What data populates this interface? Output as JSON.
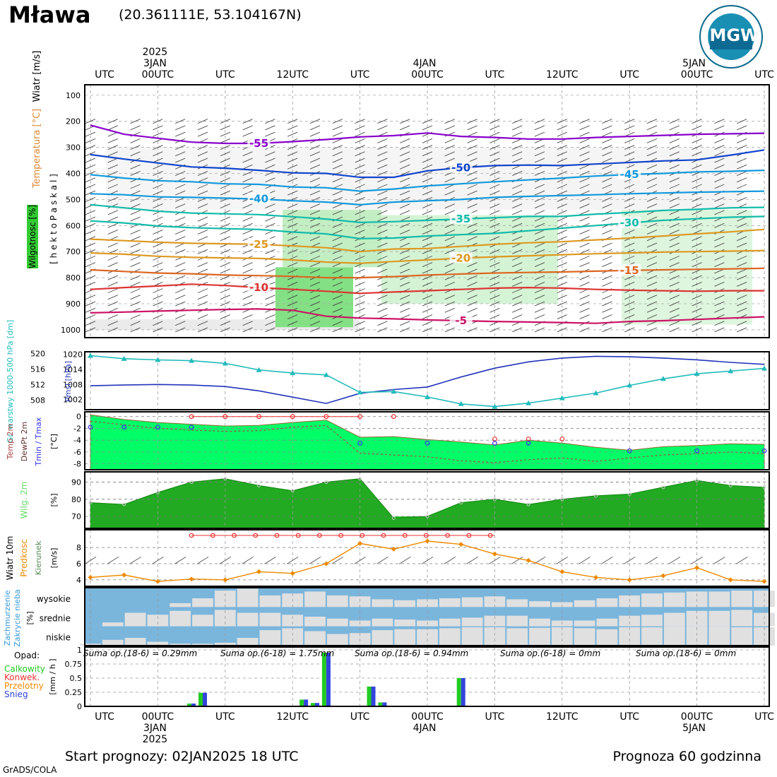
{
  "header": {
    "station": "Mława",
    "coords": "(20.361111E, 53.104167N)",
    "logo_text": "IMGW",
    "logo_ring": "INSTYTUT METEOROLOGII I GOSPODARKI WODNEJ · PAŃSTWOWY INSTYTUT BADAWCZY"
  },
  "time_axis": {
    "utc_label": "UTC",
    "hour_labels": [
      "UTC",
      "00UTC",
      "UTC",
      "12UTC",
      "UTC",
      "00UTC",
      "UTC",
      "12UTC",
      "UTC",
      "00UTC",
      "UTC"
    ],
    "top_dates": [
      {
        "year": "2025",
        "day": "3JAN"
      },
      {
        "year": "",
        "day": "4JAN"
      },
      {
        "year": "",
        "day": "5JAN"
      }
    ],
    "bottom_dates": [
      {
        "day": "3JAN",
        "year": "2025"
      },
      {
        "day": "4JAN",
        "year": ""
      },
      {
        "day": "5JAN",
        "year": ""
      }
    ]
  },
  "colors": {
    "green_fill": "#00ff66",
    "moist_green": "#33cc33",
    "cloud_blue": "#7ab5dc",
    "cloud_grey": "#e0e0e0",
    "pmsl_line": "#2233bb",
    "gpt_line": "#22bbbb",
    "temp_line": "#996633",
    "tmax": "#ee3333",
    "tmin": "#3333ee",
    "wind_speed": "#ee8800"
  },
  "chart_data": [
    {
      "type": "line",
      "panel": "upper_air",
      "labels": {
        "left_axis_wind": "Wiatr [m/s]",
        "left_axis_temp": "Temperatura [°C]",
        "left_axis_rh": "Wilgotnosc [%]",
        "left_axis_p": "[ h e k t o P a s k a l ]"
      },
      "pressure_ticks": [
        100,
        200,
        300,
        400,
        500,
        600,
        700,
        800,
        900,
        1000
      ],
      "ylim": [
        1030,
        60
      ],
      "x_hours": [
        0,
        3,
        6,
        9,
        12,
        15,
        18,
        21,
        24,
        27,
        30,
        33,
        36,
        39,
        42,
        45,
        48,
        51,
        54,
        57,
        60
      ],
      "isotherms": [
        {
          "value": -55,
          "color": "#8800cc",
          "p": [
            215,
            250,
            265,
            280,
            285,
            285,
            278,
            270,
            260,
            255,
            245,
            258,
            262,
            268,
            268,
            262,
            258,
            254,
            250,
            248,
            246
          ]
        },
        {
          "value": -50,
          "color": "#1144cc",
          "p": [
            328,
            345,
            360,
            375,
            380,
            388,
            398,
            400,
            415,
            415,
            390,
            378,
            370,
            368,
            370,
            364,
            358,
            352,
            348,
            330,
            310
          ]
        },
        {
          "value": -45,
          "color": "#1199dd",
          "p": [
            405,
            418,
            428,
            432,
            440,
            442,
            452,
            455,
            468,
            460,
            448,
            440,
            432,
            425,
            418,
            410,
            404,
            400,
            394,
            392,
            388
          ]
        },
        {
          "value": -40,
          "color": "#1199dd",
          "p": [
            478,
            482,
            490,
            492,
            495,
            498,
            505,
            510,
            520,
            510,
            505,
            500,
            492,
            488,
            485,
            482,
            478,
            475,
            472,
            470,
            468
          ]
        },
        {
          "value": -35,
          "color": "#11bbaa",
          "p": [
            520,
            532,
            545,
            552,
            555,
            558,
            566,
            575,
            588,
            585,
            580,
            575,
            570,
            565,
            565,
            556,
            550,
            542,
            538,
            532,
            530
          ]
        },
        {
          "value": -30,
          "color": "#11bbaa",
          "p": [
            582,
            590,
            602,
            608,
            612,
            615,
            625,
            632,
            650,
            648,
            640,
            635,
            630,
            620,
            610,
            600,
            590,
            580,
            574,
            568,
            565
          ]
        },
        {
          "value": -25,
          "color": "#dd9922",
          "p": [
            652,
            658,
            664,
            668,
            670,
            672,
            678,
            685,
            700,
            690,
            688,
            680,
            672,
            666,
            662,
            655,
            648,
            640,
            632,
            624,
            615
          ]
        },
        {
          "value": -20,
          "color": "#dd9922",
          "p": [
            705,
            710,
            718,
            722,
            724,
            726,
            732,
            740,
            745,
            738,
            732,
            725,
            720,
            716,
            712,
            708,
            705,
            702,
            700,
            698,
            696
          ]
        },
        {
          "value": -15,
          "color": "#dd6622",
          "p": [
            770,
            776,
            782,
            785,
            790,
            792,
            795,
            800,
            800,
            796,
            790,
            786,
            782,
            780,
            778,
            775,
            772,
            770,
            768,
            766,
            764
          ]
        },
        {
          "value": -10,
          "color": "#dd3333",
          "p": [
            845,
            838,
            832,
            825,
            830,
            838,
            845,
            852,
            860,
            855,
            850,
            845,
            840,
            838,
            840,
            845,
            848,
            850,
            852,
            850,
            850
          ]
        },
        {
          "value": -5,
          "color": "#cc1166",
          "p": [
            935,
            932,
            928,
            925,
            922,
            920,
            925,
            948,
            955,
            958,
            962,
            965,
            968,
            970,
            972,
            975,
            968,
            965,
            960,
            955,
            950
          ]
        }
      ]
    },
    {
      "type": "line",
      "panel": "pressure",
      "labels": {
        "left_axis_gpt": "Gr. warstwy 1000-500 hPa [dm]",
        "left_axis_pmsl": "Pmsl [hPa]"
      },
      "left_ticks": [
        520,
        516,
        512,
        508
      ],
      "right_ticks": [
        1020,
        1014,
        1008,
        1002
      ],
      "left_ylim": [
        505.5,
        520.5
      ],
      "right_ylim": [
        998,
        1021
      ],
      "x_hours": [
        0,
        3,
        6,
        9,
        12,
        15,
        18,
        21,
        24,
        27,
        30,
        33,
        36,
        39,
        42,
        45,
        48,
        51,
        54,
        57,
        60
      ],
      "series": [
        {
          "name": "Pmsl [hPa]",
          "values": [
            1007.5,
            1007.8,
            1008.0,
            1007.8,
            1007.2,
            1005.5,
            1003.0,
            1000.5,
            1004.5,
            1006.0,
            1007.0,
            1011.0,
            1014.5,
            1017.0,
            1018.5,
            1019.2,
            1019.0,
            1018.5,
            1017.8,
            1016.8,
            1016.0
          ]
        },
        {
          "name": "Gr. warstwy 1000-500 hPa [dm]",
          "values": [
            519.5,
            518.7,
            518.4,
            518.2,
            517.5,
            515.8,
            515.0,
            514.5,
            510.0,
            510.2,
            508.8,
            507.0,
            506.3,
            507.2,
            508.5,
            509.8,
            511.8,
            513.5,
            514.8,
            515.5,
            516.2
          ]
        }
      ]
    },
    {
      "type": "area",
      "panel": "temperature",
      "labels": {
        "l1": "Temp 2m",
        "l2": "DewPt 2m",
        "l3": "Tmin / Tmax",
        "l4": "[°C]"
      },
      "yticks": [
        0,
        -2,
        -4,
        -6,
        -8
      ],
      "ylim": [
        -9,
        0.8
      ],
      "x_hours": [
        0,
        3,
        6,
        9,
        12,
        15,
        18,
        21,
        24,
        27,
        30,
        33,
        36,
        39,
        42,
        45,
        48,
        51,
        54,
        57,
        60
      ],
      "series": [
        {
          "name": "Temp 2m",
          "values": [
            0.3,
            -0.5,
            -1.0,
            -1.3,
            -1.6,
            -1.5,
            -1.0,
            -0.6,
            -3.5,
            -3.4,
            -3.9,
            -4.3,
            -4.8,
            -4.0,
            -4.5,
            -5.2,
            -5.7,
            -5.1,
            -4.9,
            -4.6,
            -4.7
          ]
        },
        {
          "name": "DewPt 2m",
          "values": [
            -0.8,
            -1.4,
            -2.0,
            -2.3,
            -2.5,
            -2.4,
            -1.8,
            -1.5,
            -6.2,
            -6.5,
            -6.8,
            -7.5,
            -7.8,
            -7.3,
            -7.0,
            -7.6,
            -7.0,
            -6.5,
            -6.3,
            -6.0,
            -6.3
          ]
        },
        {
          "name": "Tmax",
          "values": [
            0.0,
            0.0,
            0.0,
            0.0,
            0.0,
            0.0,
            0.0,
            -3.8,
            -3.8,
            -3.8
          ]
        },
        {
          "name": "Tmin",
          "values": [
            -1.8,
            -1.8,
            -1.8,
            -1.8,
            -4.5,
            -4.5,
            -4.5,
            -4.5,
            -5.8,
            -5.8,
            -5.8
          ]
        }
      ]
    },
    {
      "type": "area",
      "panel": "humidity",
      "labels": {
        "l1": "Wilg. 2m",
        "l2": "[%]"
      },
      "yticks": [
        90,
        80,
        70
      ],
      "ylim": [
        63,
        96
      ],
      "x_hours": [
        0,
        3,
        6,
        9,
        12,
        15,
        18,
        21,
        24,
        27,
        30,
        33,
        36,
        39,
        42,
        45,
        48,
        51,
        54,
        57,
        60
      ],
      "series": [
        {
          "name": "Wilg. 2m",
          "values": [
            78,
            77,
            84,
            90,
            92,
            88,
            85,
            90,
            92,
            69,
            70,
            78,
            80,
            77,
            80,
            82,
            83,
            87,
            91,
            88,
            87
          ]
        }
      ]
    },
    {
      "type": "line",
      "panel": "wind",
      "labels": {
        "l1": "Wiatr 10m",
        "l2": "Predkosc",
        "l3": "Kierunek",
        "l4": "[m/s]"
      },
      "yticks": [
        8,
        6,
        4
      ],
      "ylim": [
        3.2,
        10.2
      ],
      "x_hours": [
        0,
        3,
        6,
        9,
        12,
        15,
        18,
        21,
        24,
        27,
        30,
        33,
        36,
        39,
        42,
        45,
        48,
        51,
        54,
        57,
        60
      ],
      "series": [
        {
          "name": "Predkosc",
          "values": [
            4.3,
            4.6,
            3.8,
            4.1,
            4.0,
            5.0,
            4.8,
            6.0,
            8.5,
            7.8,
            8.8,
            8.4,
            7.2,
            6.4,
            5.0,
            4.3,
            4.0,
            4.5,
            5.5,
            4.0,
            3.8
          ]
        },
        {
          "name": "Gust",
          "values": [
            9.5,
            9.5,
            9.5,
            9.5,
            9.5,
            9.5,
            9.5,
            9.5,
            9.5,
            9.5,
            9.5,
            9.5,
            9.5,
            9.5,
            9.5
          ]
        }
      ]
    },
    {
      "type": "bar",
      "panel": "clouds",
      "labels": {
        "l1": "Zachmurzenie",
        "l2": "Zakrycie nieba",
        "l3": "[%]",
        "levels": [
          "wysokie",
          "srednie",
          "niskie"
        ]
      },
      "x_hours": [
        0,
        2,
        4,
        6,
        8,
        10,
        12,
        14,
        16,
        18,
        20,
        22,
        24,
        26,
        28,
        30,
        32,
        34,
        36,
        38,
        40,
        42,
        44,
        46,
        48,
        50,
        52,
        54,
        56,
        58,
        60
      ],
      "series": [
        {
          "name": "wysokie",
          "values": [
            0,
            0,
            0,
            0,
            20,
            45,
            85,
            95,
            60,
            70,
            80,
            60,
            55,
            40,
            35,
            40,
            45,
            50,
            55,
            40,
            30,
            25,
            35,
            45,
            60,
            70,
            75,
            80,
            80,
            85,
            85
          ]
        },
        {
          "name": "srednie",
          "values": [
            0,
            20,
            70,
            60,
            80,
            60,
            85,
            70,
            70,
            60,
            50,
            40,
            30,
            40,
            35,
            30,
            40,
            45,
            55,
            55,
            40,
            30,
            30,
            40,
            55,
            60,
            70,
            80,
            80,
            85,
            70
          ]
        },
        {
          "name": "niskie",
          "values": [
            10,
            30,
            40,
            20,
            10,
            10,
            15,
            40,
            80,
            90,
            75,
            60,
            65,
            80,
            85,
            85,
            90,
            95,
            95,
            90,
            92,
            95,
            90,
            85,
            95,
            95,
            100,
            100,
            100,
            95,
            95
          ]
        }
      ]
    },
    {
      "type": "bar",
      "panel": "precip",
      "labels": {
        "opad": "Opad:",
        "legend": [
          "Calkowity",
          "Konwek.",
          "Przelotny",
          "Snieg"
        ],
        "unit": "[mm / h ]",
        "sums": [
          "Suma op.(18-6) = 0.29mm",
          "Suma op.(6-18) = 1.75mm",
          "Suma op.(18-6) = 0.94mm",
          "Suma op.(6-18) = 0mm",
          "Suma op.(18-6) = 0mm"
        ]
      },
      "yticks": [
        1,
        0.75,
        0.5,
        0.25,
        0
      ],
      "ylim": [
        0,
        1.05
      ],
      "x_hours": [
        9,
        10,
        19,
        20,
        21,
        25,
        26,
        33,
        34
      ],
      "series": [
        {
          "name": "Calkowity",
          "values": [
            0.05,
            0.24,
            0.12,
            0.06,
            0.95,
            0.35,
            0.07,
            0.5,
            0.0
          ]
        }
      ]
    }
  ],
  "footer": {
    "start": "Start prognozy: 02JAN2025 18 UTC",
    "range": "Prognoza 60 godzinna",
    "credit": "GrADS/COLA"
  }
}
